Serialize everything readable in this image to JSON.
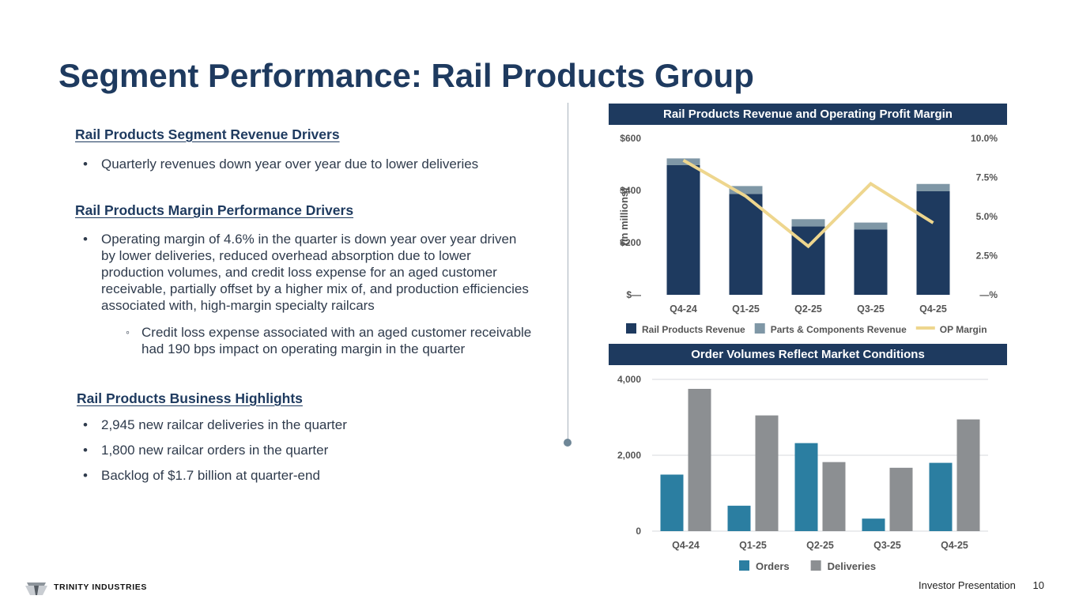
{
  "title": "Segment Performance: Rail Products Group",
  "left": {
    "section1": {
      "heading": "Rail Products Segment Revenue Drivers",
      "bullets": [
        "Quarterly revenues down year over year due to lower deliveries"
      ]
    },
    "section2": {
      "heading": "Rail Products Margin Performance Drivers",
      "bullet1": "Operating margin of 4.6% in the quarter is down year over year driven by lower deliveries, reduced overhead absorption due to lower production volumes, and credit loss expense for an aged customer receivable, partially offset by a higher mix of, and production efficiencies associated with, high-margin specialty railcars",
      "sub1": "Credit loss expense associated with an aged customer receivable had 190 bps impact on operating margin in the quarter"
    },
    "section3": {
      "heading": "Rail Products Business Highlights",
      "bullets": [
        "2,945 new railcar deliveries in the quarter",
        "1,800 new railcar orders in the quarter",
        "Backlog of $1.7 billion at quarter-end"
      ]
    }
  },
  "bullet_glyph": "•",
  "sub_glyph": "◦",
  "footer": {
    "label": "Investor Presentation",
    "page": "10"
  },
  "logo": {
    "text": "TRINITY INDUSTRIES"
  },
  "chart_data": [
    {
      "type": "bar",
      "title": "Rail Products Revenue and Operating Profit Margin",
      "stacked": true,
      "categories": [
        "Q4-24",
        "Q1-25",
        "Q2-25",
        "Q3-25",
        "Q4-25"
      ],
      "series": [
        {
          "name": "Rail Products Revenue",
          "values": [
            497,
            387,
            262,
            250,
            397
          ],
          "color": "#1e3a5f"
        },
        {
          "name": "Parts & Components Revenue",
          "values": [
            26,
            30,
            28,
            27,
            28
          ],
          "color": "#7f97a6"
        },
        {
          "name": "OP Margin",
          "type": "line",
          "axis": "right",
          "values": [
            8.6,
            6.3,
            3.1,
            7.1,
            4.6
          ],
          "color": "#eed68e"
        }
      ],
      "ylabel": "(in millions)",
      "ylim": [
        0,
        600
      ],
      "yticks": [
        "$—",
        "$200",
        "$400",
        "$600"
      ],
      "y2lim": [
        0,
        10
      ],
      "y2ticks": [
        "—%",
        "2.5%",
        "5.0%",
        "7.5%",
        "10.0%"
      ],
      "legend": "bottom"
    },
    {
      "type": "bar",
      "title": "Order Volumes Reflect Market Conditions",
      "categories": [
        "Q4-24",
        "Q1-25",
        "Q2-25",
        "Q3-25",
        "Q4-25"
      ],
      "series": [
        {
          "name": "Orders",
          "values": [
            1490,
            670,
            2320,
            330,
            1800
          ],
          "color": "#2b7ea1"
        },
        {
          "name": "Deliveries",
          "values": [
            3750,
            3050,
            1820,
            1670,
            2945
          ],
          "color": "#8c8f92"
        }
      ],
      "ylim": [
        0,
        4000
      ],
      "yticks": [
        "0",
        "2,000",
        "4,000"
      ],
      "gridlines": true,
      "legend": "bottom"
    }
  ]
}
